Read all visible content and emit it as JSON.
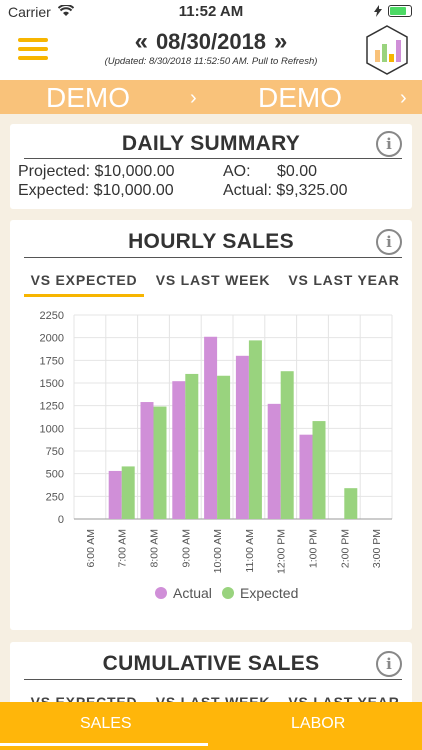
{
  "status": {
    "carrier": "Carrier",
    "time": "11:52 AM"
  },
  "header": {
    "prev": "«",
    "date": "08/30/2018",
    "next": "»",
    "updated": "(Updated: 8/30/2018 11:52:50 AM. Pull to Refresh)"
  },
  "demo": {
    "left": "DEMO",
    "right": "DEMO"
  },
  "daily": {
    "title": "DAILY SUMMARY",
    "projected": "Projected: $10,000.00",
    "expected": "Expected: $10,000.00",
    "ao": "AO:",
    "ao_value": "$0.00",
    "actual": "Actual: $9,325.00"
  },
  "hourly": {
    "title": "HOURLY SALES",
    "tabs": [
      "VS EXPECTED",
      "VS LAST WEEK",
      "VS LAST YEAR"
    ]
  },
  "cumulative": {
    "title": "CUMULATIVE SALES"
  },
  "chart_data": {
    "type": "bar",
    "categories": [
      "6:00 AM",
      "7:00 AM",
      "8:00 AM",
      "9:00 AM",
      "10:00 AM",
      "11:00 AM",
      "12:00 PM",
      "1:00 PM",
      "2:00 PM",
      "3:00 PM"
    ],
    "series": [
      {
        "name": "Actual",
        "color": "#d08fd8",
        "values": [
          0,
          530,
          1290,
          1520,
          2010,
          1800,
          1270,
          930,
          0,
          0
        ]
      },
      {
        "name": "Expected",
        "color": "#99d37e",
        "values": [
          0,
          580,
          1240,
          1600,
          1580,
          1970,
          1630,
          1080,
          340,
          0
        ]
      }
    ],
    "yticks": [
      0,
      250,
      500,
      750,
      1000,
      1250,
      1500,
      1750,
      2000,
      2250
    ],
    "ylim": [
      0,
      2250
    ],
    "grid": true,
    "legend": "bottom"
  },
  "bottom": {
    "sales": "SALES",
    "labor": "LABOR"
  }
}
